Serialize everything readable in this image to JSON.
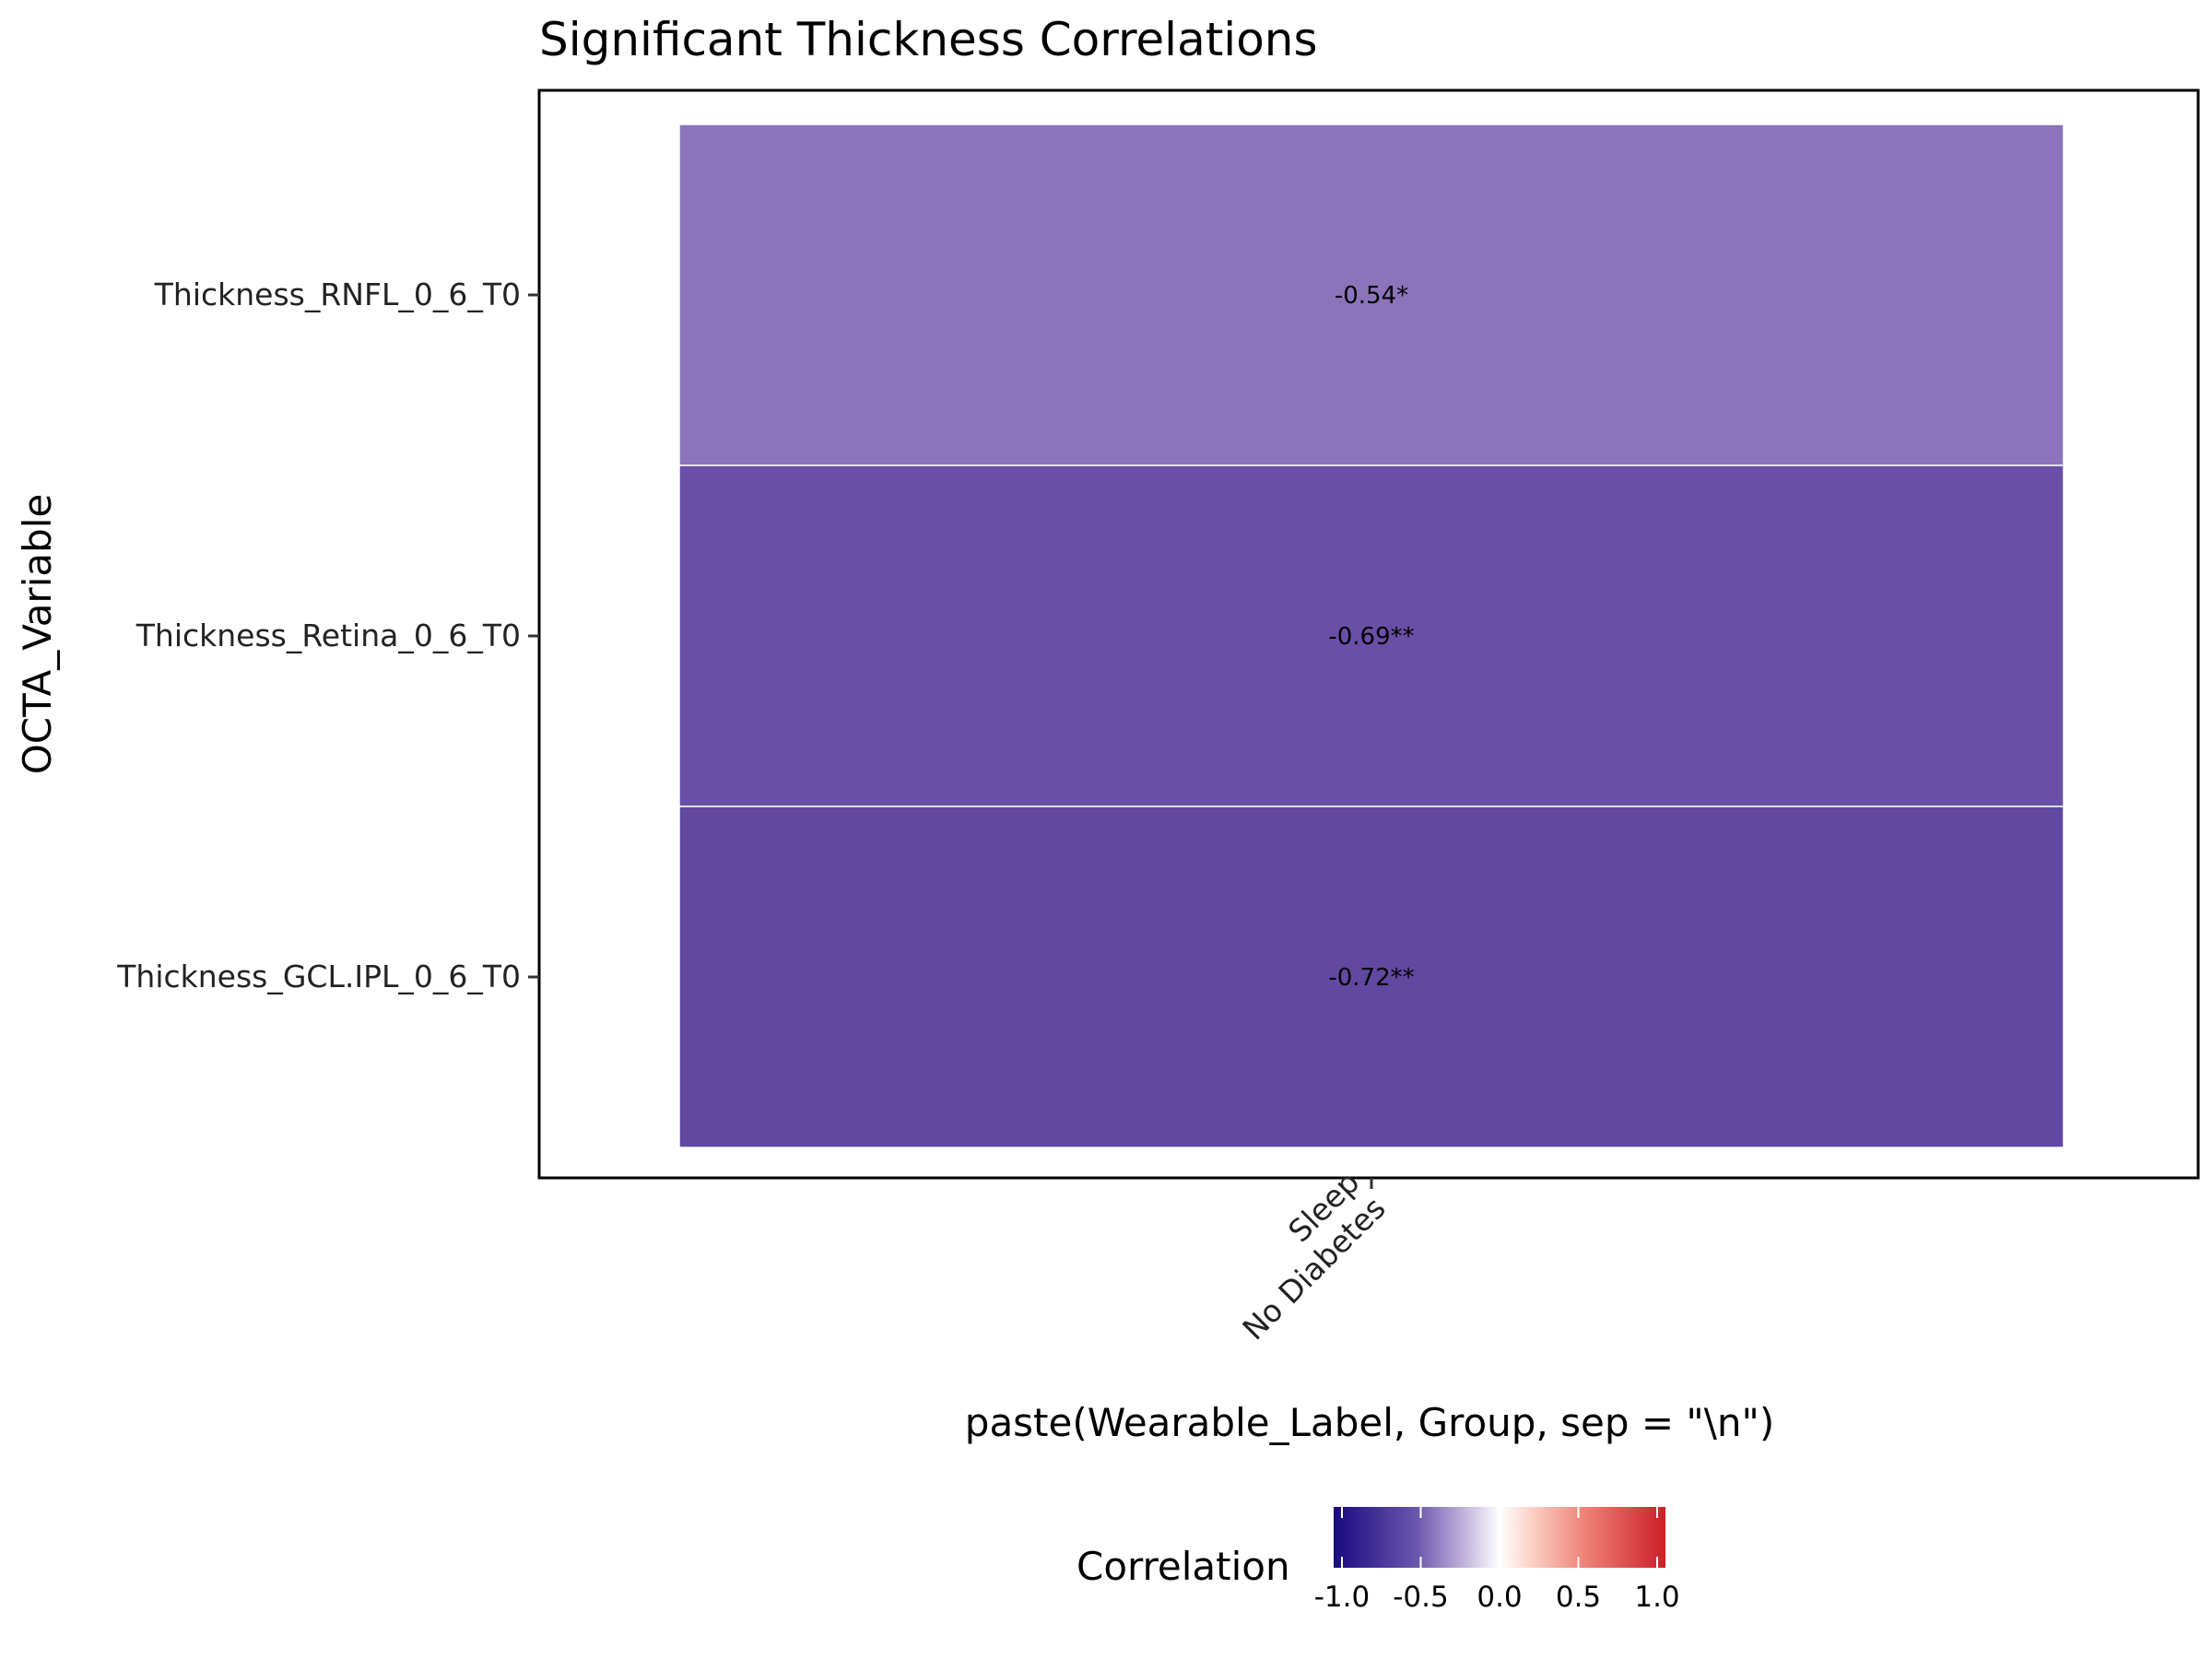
{
  "chart_data": {
    "type": "heatmap",
    "title": "Significant Thickness Correlations",
    "xlabel": "paste(Wearable_Label, Group, sep = \"\\n\")",
    "ylabel": "OCTA_Variable",
    "x_categories": [
      {
        "lines": [
          "Sleep",
          "No Diabetes"
        ]
      }
    ],
    "y_categories": [
      "Thickness_RNFL_0_6_T0",
      "Thickness_Retina_0_6_T0",
      "Thickness_GCL.IPL_0_6_T0"
    ],
    "cells": [
      {
        "x": 0,
        "y": "Thickness_RNFL_0_6_T0",
        "value": -0.54,
        "label": "-0.54*",
        "color": "#8c74ba"
      },
      {
        "x": 0,
        "y": "Thickness_Retina_0_6_T0",
        "value": -0.69,
        "label": "-0.69**",
        "color": "#694fa7"
      },
      {
        "x": 0,
        "y": "Thickness_GCL.IPL_0_6_T0",
        "value": -0.72,
        "label": "-0.72**",
        "color": "#6148a1"
      }
    ],
    "legend": {
      "title": "Correlation",
      "position": "bottom",
      "range": [
        -1,
        1
      ],
      "ticks": [
        -1.0,
        -0.5,
        0.0,
        0.5,
        1.0
      ],
      "tick_labels": [
        "-1.0",
        "-0.5",
        "0.0",
        "0.5",
        "1.0"
      ],
      "colors": {
        "low": "#1a0a80",
        "mid": "#ffffff",
        "high": "#cc1f26"
      }
    },
    "grid": false
  }
}
